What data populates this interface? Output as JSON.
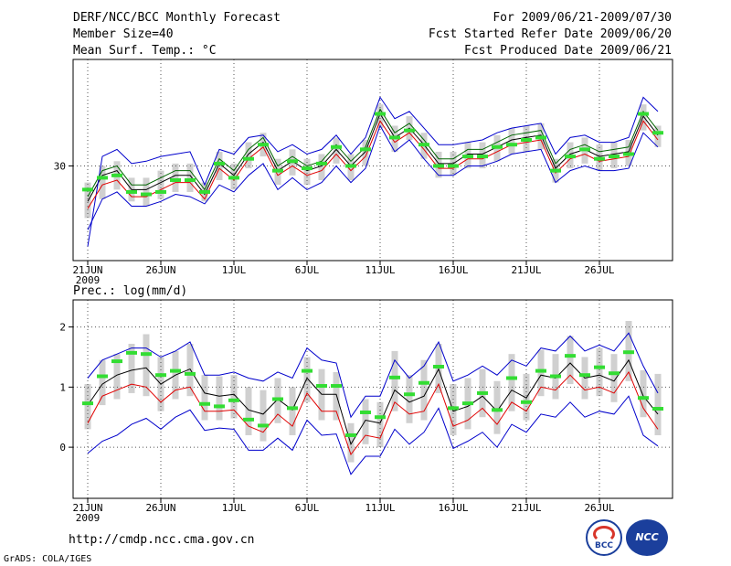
{
  "header": {
    "title": "DERF/NCC/BCC Monthly Forecast",
    "member_size": "Member Size=40",
    "variable": "Mean Surf. Temp.: °C",
    "period": "For 2009/06/21-2009/07/30",
    "fcst_started": "Fcst Started Refer Date 2009/06/20",
    "fcst_produced": "Fcst Produced Date 2009/06/21"
  },
  "footer": {
    "url": "http://cmdp.ncc.cma.gov.cn",
    "grads": "GrADS: COLA/IGES",
    "logo_left": "BCC",
    "logo_right": "NCC"
  },
  "chart_data": [
    {
      "type": "line",
      "name": "temperature",
      "title": "Mean Surf. Temp.: °C",
      "xlabel": "",
      "ylabel": "",
      "ylim": [
        26,
        34.5
      ],
      "ytick_values": [
        30
      ],
      "ytick_labels": [
        "30"
      ],
      "x": [
        1,
        2,
        3,
        4,
        5,
        6,
        7,
        8,
        9,
        10,
        11,
        12,
        13,
        14,
        15,
        16,
        17,
        18,
        19,
        20,
        21,
        22,
        23,
        24,
        25,
        26,
        27,
        28,
        29,
        30,
        31,
        32,
        33,
        34,
        35,
        36,
        37,
        38,
        39,
        40
      ],
      "xtick_positions": [
        1,
        6,
        11,
        16,
        21,
        26,
        31,
        36
      ],
      "xtick_labels": [
        "21JUN",
        "26JUN",
        "1JUL",
        "6JUL",
        "11JUL",
        "16JUL",
        "21JUL",
        "26JUL"
      ],
      "x_year_label": "2009",
      "grid": true,
      "series": [
        {
          "name": "ensemble mean",
          "color": "#000000",
          "values": [
            28.5,
            29.6,
            29.8,
            29.0,
            29.0,
            29.3,
            29.6,
            29.6,
            28.8,
            30.1,
            29.6,
            30.5,
            31.0,
            29.8,
            30.2,
            29.8,
            30.0,
            30.7,
            30.0,
            30.6,
            32.2,
            31.2,
            31.6,
            30.9,
            30.1,
            30.1,
            30.5,
            30.5,
            30.8,
            31.1,
            31.2,
            31.3,
            29.9,
            30.5,
            30.7,
            30.4,
            30.5,
            30.6,
            32.1,
            31.3
          ]
        },
        {
          "name": "ensemble max",
          "color": "#0000cc",
          "values": [
            26.6,
            30.4,
            30.7,
            30.1,
            30.2,
            30.4,
            30.5,
            30.6,
            29.2,
            30.7,
            30.5,
            31.2,
            31.3,
            30.6,
            30.9,
            30.5,
            30.7,
            31.3,
            30.5,
            31.2,
            32.9,
            32.0,
            32.3,
            31.6,
            30.9,
            30.9,
            31.0,
            31.1,
            31.4,
            31.6,
            31.7,
            31.8,
            30.5,
            31.2,
            31.3,
            31.0,
            31.0,
            31.2,
            32.9,
            32.3
          ]
        },
        {
          "name": "upper bound",
          "color": "#006400",
          "values": [
            28.7,
            29.8,
            30.0,
            29.2,
            29.2,
            29.5,
            29.8,
            29.8,
            29.0,
            30.3,
            29.8,
            30.7,
            31.2,
            30.0,
            30.4,
            30.0,
            30.2,
            30.9,
            30.2,
            30.8,
            32.4,
            31.4,
            31.8,
            31.1,
            30.3,
            30.3,
            30.7,
            30.7,
            31.0,
            31.3,
            31.4,
            31.5,
            30.1,
            30.7,
            30.9,
            30.6,
            30.7,
            30.8,
            32.3,
            31.5
          ]
        },
        {
          "name": "lower bound",
          "color": "#e00000",
          "values": [
            28.2,
            29.2,
            29.4,
            28.7,
            28.7,
            29.0,
            29.3,
            29.3,
            28.6,
            29.9,
            29.4,
            30.3,
            30.8,
            29.6,
            30.0,
            29.6,
            29.8,
            30.5,
            29.8,
            30.4,
            31.9,
            31.0,
            31.4,
            30.7,
            29.9,
            29.9,
            30.3,
            30.3,
            30.6,
            30.9,
            31.0,
            31.1,
            29.7,
            30.3,
            30.5,
            30.2,
            30.3,
            30.4,
            31.9,
            31.1
          ]
        },
        {
          "name": "ensemble min",
          "color": "#0000cc",
          "values": [
            27.3,
            28.6,
            28.9,
            28.3,
            28.3,
            28.5,
            28.8,
            28.7,
            28.4,
            29.2,
            28.9,
            29.6,
            30.1,
            29.0,
            29.5,
            29.0,
            29.3,
            30.0,
            29.3,
            29.9,
            31.7,
            30.6,
            31.1,
            30.3,
            29.6,
            29.6,
            30.0,
            30.0,
            30.2,
            30.5,
            30.6,
            30.7,
            29.3,
            29.8,
            30.0,
            29.8,
            29.8,
            29.9,
            31.4,
            30.8
          ]
        },
        {
          "name": "observation",
          "color": "#33dd33",
          "values": [
            29.0,
            29.5,
            29.6,
            28.9,
            28.8,
            28.9,
            29.4,
            29.4,
            28.9,
            30.1,
            29.5,
            30.3,
            30.9,
            29.8,
            30.2,
            29.9,
            30.1,
            30.8,
            30.0,
            30.7,
            32.2,
            31.2,
            31.5,
            30.9,
            30.0,
            30.0,
            30.4,
            30.4,
            30.8,
            30.9,
            31.1,
            31.2,
            29.8,
            30.4,
            30.7,
            30.3,
            30.4,
            30.5,
            32.2,
            31.4
          ]
        }
      ],
      "spread_bars": {
        "color": "#d0d0d0",
        "low": [
          27.8,
          28.6,
          29.0,
          28.5,
          28.3,
          28.6,
          28.9,
          28.9,
          28.5,
          29.4,
          29.0,
          29.9,
          30.4,
          29.2,
          29.6,
          29.2,
          29.4,
          30.1,
          29.4,
          30.0,
          31.6,
          30.6,
          31.1,
          30.3,
          29.5,
          29.6,
          29.9,
          29.9,
          30.2,
          30.5,
          30.6,
          30.7,
          29.3,
          29.9,
          30.1,
          29.8,
          29.9,
          30.0,
          31.5,
          30.8
        ],
        "high": [
          29.3,
          30.0,
          30.2,
          29.5,
          29.5,
          29.8,
          30.1,
          30.1,
          29.3,
          30.6,
          30.1,
          31.0,
          31.4,
          30.3,
          30.7,
          30.3,
          30.5,
          31.2,
          30.5,
          31.1,
          32.6,
          31.7,
          32.1,
          31.4,
          30.6,
          30.6,
          31.0,
          31.0,
          31.3,
          31.6,
          31.7,
          31.8,
          30.3,
          31.0,
          31.2,
          30.9,
          31.0,
          31.1,
          32.6,
          31.7
        ]
      }
    },
    {
      "type": "line",
      "name": "precipitation",
      "title": "Prec.: log(mm/d)",
      "xlabel": "",
      "ylabel": "",
      "ylim": [
        -0.85,
        2.45
      ],
      "ytick_values": [
        0,
        1,
        2
      ],
      "ytick_labels": [
        "0",
        "1",
        "2"
      ],
      "x": [
        1,
        2,
        3,
        4,
        5,
        6,
        7,
        8,
        9,
        10,
        11,
        12,
        13,
        14,
        15,
        16,
        17,
        18,
        19,
        20,
        21,
        22,
        23,
        24,
        25,
        26,
        27,
        28,
        29,
        30,
        31,
        32,
        33,
        34,
        35,
        36,
        37,
        38,
        39,
        40
      ],
      "xtick_positions": [
        1,
        6,
        11,
        16,
        21,
        26,
        31,
        36
      ],
      "xtick_labels": [
        "21JUN",
        "26JUN",
        "1JUL",
        "6JUL",
        "11JUL",
        "16JUL",
        "21JUL",
        "26JUL"
      ],
      "x_year_label": "2009",
      "grid": true,
      "series": [
        {
          "name": "ensemble mean",
          "color": "#000000",
          "values": [
            0.7,
            1.05,
            1.2,
            1.28,
            1.32,
            1.05,
            1.2,
            1.3,
            0.9,
            0.85,
            0.88,
            0.62,
            0.55,
            0.8,
            0.62,
            1.15,
            0.88,
            0.88,
            0.05,
            0.45,
            0.4,
            0.95,
            0.75,
            0.85,
            1.3,
            0.6,
            0.68,
            0.85,
            0.6,
            0.95,
            0.82,
            1.2,
            1.15,
            1.4,
            1.15,
            1.2,
            1.1,
            1.45,
            0.85,
            0.55
          ]
        },
        {
          "name": "ensemble max",
          "color": "#0000cc",
          "values": [
            1.15,
            1.45,
            1.55,
            1.65,
            1.65,
            1.5,
            1.6,
            1.75,
            1.2,
            1.2,
            1.25,
            1.15,
            1.1,
            1.25,
            1.15,
            1.65,
            1.45,
            1.4,
            0.5,
            0.85,
            0.85,
            1.45,
            1.15,
            1.35,
            1.75,
            1.1,
            1.2,
            1.35,
            1.2,
            1.45,
            1.35,
            1.65,
            1.6,
            1.85,
            1.6,
            1.7,
            1.6,
            1.9,
            1.35,
            0.9
          ]
        },
        {
          "name": "lower bound",
          "color": "#e00000",
          "values": [
            0.4,
            0.85,
            0.95,
            1.05,
            1.0,
            0.75,
            0.95,
            1.0,
            0.6,
            0.6,
            0.62,
            0.35,
            0.25,
            0.55,
            0.35,
            0.9,
            0.6,
            0.6,
            -0.12,
            0.2,
            0.15,
            0.75,
            0.55,
            0.6,
            1.05,
            0.35,
            0.45,
            0.65,
            0.38,
            0.75,
            0.6,
            1.0,
            0.95,
            1.2,
            0.95,
            1.0,
            0.9,
            1.25,
            0.65,
            0.3
          ]
        },
        {
          "name": "ensemble min",
          "color": "#0000cc",
          "values": [
            -0.1,
            0.1,
            0.2,
            0.38,
            0.48,
            0.3,
            0.5,
            0.62,
            0.28,
            0.32,
            0.3,
            -0.05,
            -0.05,
            0.15,
            -0.05,
            0.45,
            0.2,
            0.22,
            -0.45,
            -0.15,
            -0.15,
            0.3,
            0.05,
            0.25,
            0.65,
            -0.02,
            0.1,
            0.25,
            0.0,
            0.38,
            0.25,
            0.55,
            0.5,
            0.75,
            0.5,
            0.6,
            0.55,
            0.85,
            0.2,
            0.02
          ]
        },
        {
          "name": "observation",
          "color": "#33dd33",
          "values": [
            0.73,
            1.18,
            1.43,
            1.57,
            1.55,
            1.2,
            1.27,
            1.22,
            0.72,
            0.68,
            0.78,
            0.46,
            0.36,
            0.8,
            0.65,
            1.27,
            1.02,
            1.02,
            0.2,
            0.58,
            0.5,
            1.16,
            0.88,
            1.07,
            1.34,
            0.65,
            0.73,
            0.9,
            0.62,
            1.15,
            0.75,
            1.27,
            1.18,
            1.52,
            1.2,
            1.33,
            1.23,
            1.58,
            0.82,
            0.64
          ]
        }
      ],
      "spread_bars": {
        "color": "#d0d0d0",
        "low": [
          0.3,
          0.7,
          0.8,
          0.9,
          0.85,
          0.6,
          0.8,
          0.85,
          0.45,
          0.45,
          0.48,
          0.2,
          0.1,
          0.4,
          0.2,
          0.75,
          0.45,
          0.45,
          -0.25,
          0.05,
          0.0,
          0.6,
          0.4,
          0.45,
          0.9,
          0.2,
          0.3,
          0.5,
          0.22,
          0.6,
          0.45,
          0.85,
          0.8,
          1.05,
          0.8,
          0.85,
          0.75,
          1.1,
          0.5,
          0.2
        ],
        "high": [
          1.05,
          1.45,
          1.55,
          1.72,
          1.88,
          1.5,
          1.6,
          1.72,
          1.2,
          1.18,
          1.2,
          1.0,
          0.95,
          1.15,
          1.0,
          1.5,
          1.3,
          1.25,
          0.4,
          0.8,
          0.75,
          1.6,
          1.2,
          1.45,
          1.72,
          1.05,
          1.15,
          1.3,
          1.1,
          1.55,
          1.22,
          1.62,
          1.55,
          1.85,
          1.5,
          1.65,
          1.55,
          2.1,
          1.28,
          1.22
        ]
      }
    }
  ]
}
